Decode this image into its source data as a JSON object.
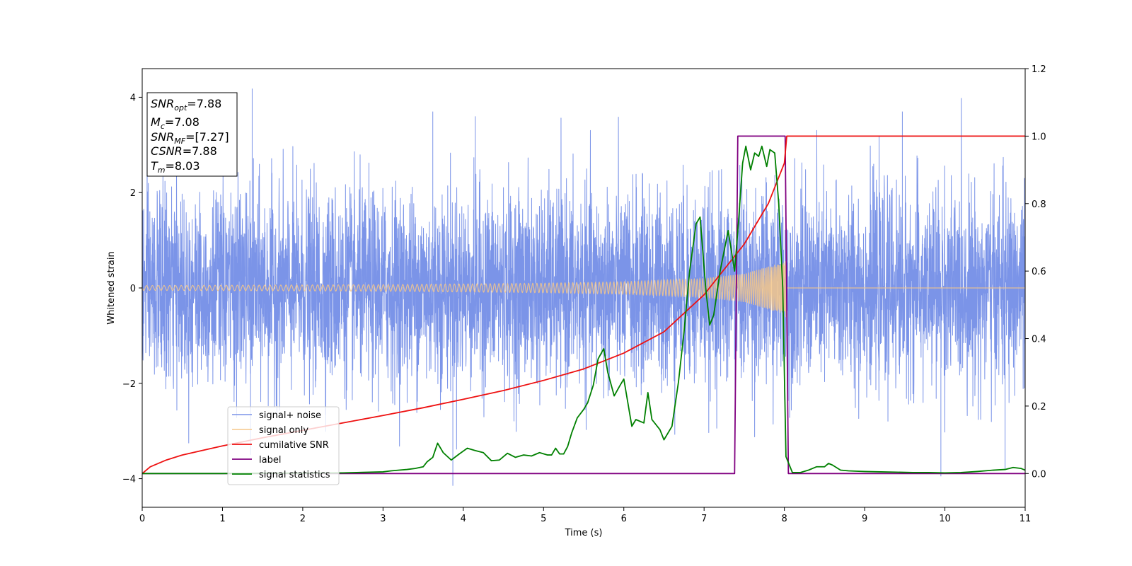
{
  "chart_data": {
    "type": "line",
    "title": "",
    "xlabel": "Time (s)",
    "ylabel": "Whitened strain",
    "xlim": [
      0,
      11
    ],
    "ylim": [
      -4.6,
      4.6
    ],
    "y2lim": [
      -0.1,
      1.2
    ],
    "xticks": [
      "0",
      "1",
      "2",
      "3",
      "4",
      "5",
      "6",
      "7",
      "8",
      "9",
      "10",
      "11"
    ],
    "yticks": [
      "−4",
      "−2",
      "0",
      "2",
      "4"
    ],
    "y2ticks": [
      "0.0",
      "0.2",
      "0.4",
      "0.6",
      "0.8",
      "1.0",
      "1.2"
    ],
    "grid": false,
    "legend_position": "lower-left",
    "info_box": {
      "snr_opt": {
        "base": "SNR",
        "sub": "opt",
        "value": "=7.88"
      },
      "mc": {
        "base": "M",
        "sub": "c",
        "value": "=7.08"
      },
      "snr_mf": {
        "base": "SNR",
        "sub": "MF",
        "value": "=[7.27]"
      },
      "csnr": {
        "base": "CSNR",
        "sub": "",
        "value": "=7.88"
      },
      "tm": {
        "base": "T",
        "sub": "m",
        "value": "=8.03"
      }
    },
    "series": [
      {
        "name": "signal+ noise",
        "color": "#7b94e8",
        "axis": "left",
        "description_params": {
          "noise_std": 1.0,
          "t_end": 11,
          "merger_time": 8.03,
          "outlier_min": -4.15,
          "outlier_max": 4.18
        }
      },
      {
        "name": "signal only",
        "color": "#f5c78a",
        "axis": "left",
        "envelope": {
          "t": [
            0,
            3,
            5,
            6,
            7,
            7.5,
            8.0,
            8.03
          ],
          "amp": [
            0.05,
            0.07,
            0.1,
            0.13,
            0.2,
            0.3,
            0.55,
            0.65
          ]
        }
      },
      {
        "name": "cumilative SNR",
        "color": "#ee1111",
        "axis": "right",
        "x": [
          0,
          0.1,
          0.3,
          0.5,
          1,
          1.5,
          2,
          2.5,
          3,
          3.5,
          4,
          4.5,
          5,
          5.5,
          6,
          6.5,
          7,
          7.5,
          7.8,
          8.0,
          8.03,
          11
        ],
        "y": [
          0.0,
          0.02,
          0.04,
          0.055,
          0.082,
          0.106,
          0.128,
          0.15,
          0.172,
          0.195,
          0.22,
          0.246,
          0.276,
          0.31,
          0.357,
          0.42,
          0.53,
          0.68,
          0.8,
          0.92,
          1.0,
          1.0
        ]
      },
      {
        "name": "label",
        "color": "#800080",
        "axis": "right",
        "x": [
          0,
          7.38,
          7.42,
          8.01,
          8.05,
          11
        ],
        "y": [
          0,
          0,
          1,
          1,
          0,
          0
        ]
      },
      {
        "name": "signal statistics",
        "color": "#008000",
        "axis": "right",
        "x": [
          0,
          0.5,
          1,
          1.5,
          2,
          2.5,
          3,
          3.1,
          3.2,
          3.3,
          3.4,
          3.5,
          3.55,
          3.62,
          3.68,
          3.75,
          3.85,
          3.95,
          4.05,
          4.15,
          4.25,
          4.35,
          4.45,
          4.55,
          4.65,
          4.75,
          4.85,
          4.95,
          5.05,
          5.1,
          5.15,
          5.2,
          5.25,
          5.3,
          5.35,
          5.42,
          5.5,
          5.55,
          5.62,
          5.68,
          5.75,
          5.8,
          5.88,
          5.95,
          6.0,
          6.05,
          6.1,
          6.15,
          6.25,
          6.3,
          6.35,
          6.45,
          6.5,
          6.6,
          6.68,
          6.75,
          6.82,
          6.9,
          6.95,
          7.02,
          7.07,
          7.12,
          7.2,
          7.3,
          7.38,
          7.43,
          7.48,
          7.52,
          7.58,
          7.63,
          7.68,
          7.72,
          7.78,
          7.82,
          7.88,
          7.93,
          7.98,
          8.02,
          8.1,
          8.2,
          8.3,
          8.4,
          8.5,
          8.55,
          8.6,
          8.7,
          8.8,
          8.9,
          9.0,
          9.2,
          9.4,
          9.6,
          9.8,
          10.0,
          10.2,
          10.4,
          10.6,
          10.75,
          10.85,
          10.95,
          11.0
        ],
        "y": [
          0.0,
          0.0,
          0.0,
          0.001,
          0.001,
          0.002,
          0.005,
          0.008,
          0.01,
          0.012,
          0.015,
          0.02,
          0.035,
          0.048,
          0.09,
          0.062,
          0.04,
          0.058,
          0.075,
          0.068,
          0.062,
          0.038,
          0.04,
          0.06,
          0.048,
          0.055,
          0.052,
          0.062,
          0.055,
          0.055,
          0.075,
          0.058,
          0.058,
          0.08,
          0.12,
          0.165,
          0.19,
          0.21,
          0.262,
          0.34,
          0.37,
          0.3,
          0.23,
          0.26,
          0.28,
          0.21,
          0.14,
          0.16,
          0.15,
          0.24,
          0.16,
          0.13,
          0.1,
          0.14,
          0.27,
          0.42,
          0.6,
          0.74,
          0.76,
          0.55,
          0.44,
          0.47,
          0.6,
          0.72,
          0.6,
          0.75,
          0.92,
          0.97,
          0.9,
          0.95,
          0.94,
          0.97,
          0.91,
          0.96,
          0.95,
          0.8,
          0.55,
          0.05,
          0.003,
          0.003,
          0.01,
          0.02,
          0.02,
          0.03,
          0.025,
          0.01,
          0.008,
          0.007,
          0.006,
          0.005,
          0.004,
          0.003,
          0.003,
          0.002,
          0.003,
          0.006,
          0.01,
          0.012,
          0.018,
          0.015,
          0.01
        ]
      }
    ]
  }
}
